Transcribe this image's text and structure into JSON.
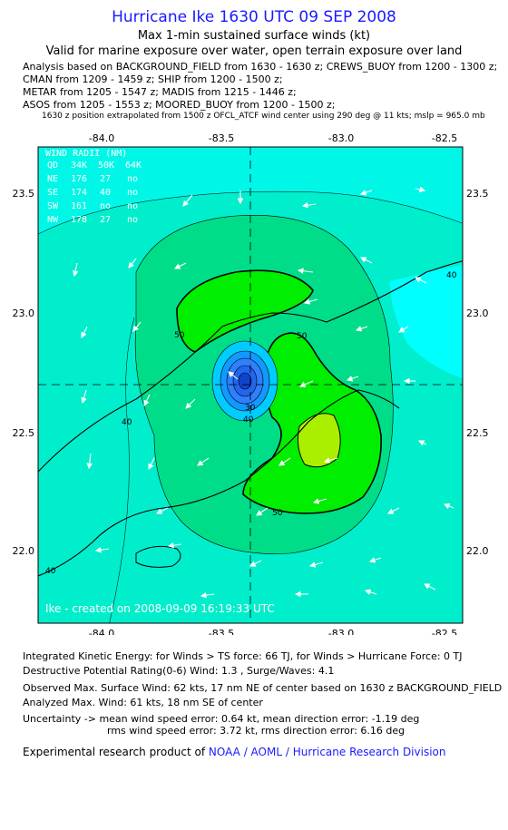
{
  "header": {
    "title": "Hurricane Ike 1630 UTC 09 SEP 2008",
    "subtitle1": "Max 1-min sustained surface winds (kt)",
    "subtitle2": "Valid for marine exposure over water, open terrain exposure over land",
    "analysis1": "Analysis based on  BACKGROUND_FIELD from 1630 - 1630 z;  CREWS_BUOY from 1200 - 1300 z;",
    "analysis2": "CMAN from 1209 - 1459 z;  SHIP from 1200 - 1500 z;",
    "analysis3": "METAR from 1205 - 1547 z;  MADIS from 1215 - 1446 z;",
    "analysis4": "ASOS from 1205 - 1553 z;  MOORED_BUOY from 1200 - 1500 z;",
    "position_note": "1630 z position extrapolated from 1500 z OFCL_ATCF wind center using 290 deg @ 11 kts; mslp = 965.0 mb"
  },
  "map": {
    "lon_ticks": [
      "-84.0",
      "-83.5",
      "-83.0",
      "-82.5"
    ],
    "lat_ticks": [
      "23.5",
      "23.0",
      "22.5",
      "22.0"
    ],
    "wind_radii": {
      "title": "WIND RADII (NM)",
      "header": [
        "QD",
        "34K",
        "50K",
        "64K"
      ],
      "rows": [
        [
          "NE",
          "176",
          "27",
          "no"
        ],
        [
          "SE",
          "174",
          "40",
          "no"
        ],
        [
          "SW",
          "161",
          "no",
          "no"
        ],
        [
          "NW",
          "178",
          "27",
          "no"
        ]
      ]
    },
    "contour_labels": [
      "40",
      "40",
      "40",
      "50",
      "50",
      "50",
      "30",
      "40"
    ],
    "credit": "Ike - created on 2008-09-09 16:19:33 UTC",
    "colors": {
      "lt30": "#00ffff",
      "c30_40": "#00eecc",
      "c40_50": "#00dd88",
      "c50_64": "#00ee00",
      "c64p": "#aaee00",
      "core": "#2f7fff",
      "coast": "#000000"
    }
  },
  "footer": {
    "ike_line": "Integrated Kinetic Energy:  for Winds > TS force: 66 TJ,  for Winds > Hurricane Force: 0 TJ",
    "dpr_line": "Destructive Potential Rating(0-6)   Wind: 1.3 , Surge/Waves: 4.1",
    "obs_max": "Observed Max. Surface Wind: 62 kts, 17 nm NE of center based on 1630 z BACKGROUND_FIELD",
    "analyzed_max": "Analyzed Max. Wind: 61 kts, 18 nm SE of center",
    "uncertainty1": "Uncertainty -> mean wind speed error: 0.64 kt,   mean direction error:  -1.19 deg",
    "uncertainty2": "rms wind speed error: 3.72 kt,   rms direction error: 6.16 deg",
    "product_prefix": "Experimental research product of ",
    "product_link": "NOAA / AOML / Hurricane Research Division"
  }
}
